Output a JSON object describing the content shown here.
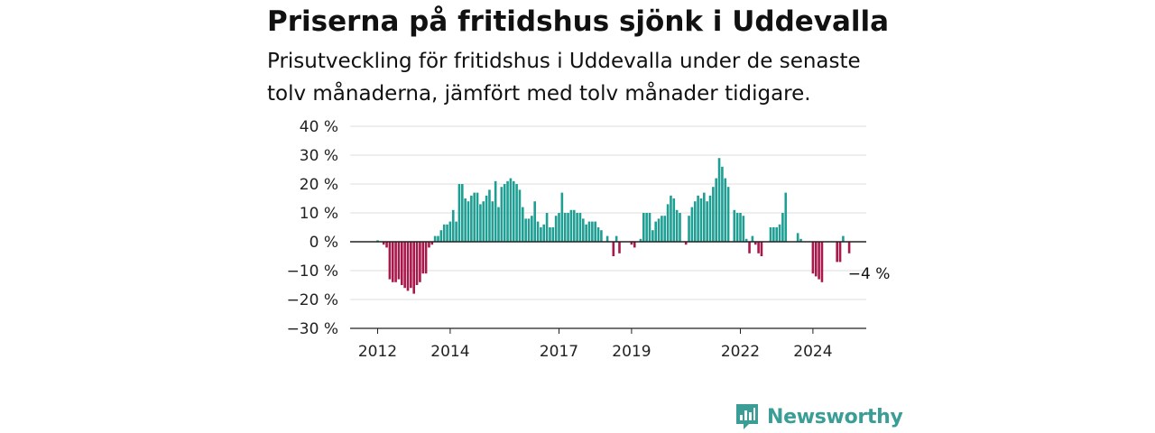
{
  "header": {
    "title": "Priserna på fritidshus sjönk i Uddevalla",
    "subtitle": "Prisutveckling för fritidshus i Uddevalla under de senaste tolv månaderna, jämfört med tolv månader tidigare."
  },
  "brand": {
    "name": "Newsworthy",
    "icon": "newsworthy-logo-icon"
  },
  "colors": {
    "positive": "#1f9e93",
    "negative": "#a8184b",
    "grid": "#dddddd",
    "axis": "#222222",
    "brand": "#3a9e97"
  },
  "chart_data": {
    "type": "bar",
    "title": "Priserna på fritidshus sjönk i Uddevalla",
    "subtitle": "Prisutveckling för fritidshus i Uddevalla under de senaste tolv månaderna, jämfört med tolv månader tidigare.",
    "xlabel": "",
    "ylabel": "",
    "ylim": [
      -30,
      40
    ],
    "yticks": [
      -30,
      -20,
      -10,
      0,
      10,
      20,
      30,
      40
    ],
    "ytick_labels": [
      "−30 %",
      "−20 %",
      "−10 %",
      "0 %",
      "10 %",
      "20 %",
      "30 %",
      "40 %"
    ],
    "xticks": [
      "2012",
      "2014",
      "2017",
      "2019",
      "2022",
      "2024"
    ],
    "x_start": "2012-01",
    "grid": true,
    "annotation": {
      "text": "−4 %",
      "value": -4
    },
    "values": [
      0.5,
      0,
      -1,
      -2,
      -13,
      -14,
      -14,
      -13,
      -15,
      -16,
      -17,
      -16,
      -18,
      -15,
      -14,
      -11,
      -11,
      -2,
      -1,
      2,
      2,
      4,
      6,
      6,
      7,
      11,
      7,
      20,
      20,
      15,
      14,
      16,
      17,
      17,
      13,
      14,
      16,
      18,
      14,
      21,
      12,
      19,
      20,
      21,
      22,
      21,
      20,
      18,
      12,
      8,
      8,
      9,
      14,
      7,
      5,
      6,
      10,
      5,
      5,
      9,
      10,
      17,
      10,
      10,
      11,
      11,
      10,
      10,
      8,
      6,
      7,
      7,
      7,
      5,
      4,
      0,
      2,
      0,
      -5,
      2,
      -4,
      0,
      0,
      0,
      -1,
      -2,
      0,
      1,
      10,
      10,
      10,
      4,
      7,
      8,
      9,
      9,
      13,
      16,
      15,
      11,
      10,
      0,
      -1,
      9,
      12,
      14,
      16,
      15,
      17,
      14,
      16,
      19,
      22,
      29,
      26,
      22,
      19,
      0,
      11,
      10,
      10,
      9,
      1,
      -4,
      2,
      -1,
      -4,
      -5,
      null,
      0,
      5,
      5,
      5,
      6,
      10,
      17,
      null,
      null,
      0,
      3,
      1,
      null,
      null,
      0,
      -11,
      -12,
      -13,
      -14,
      null,
      null,
      null,
      null,
      -7,
      -7,
      2,
      null,
      -4
    ]
  }
}
